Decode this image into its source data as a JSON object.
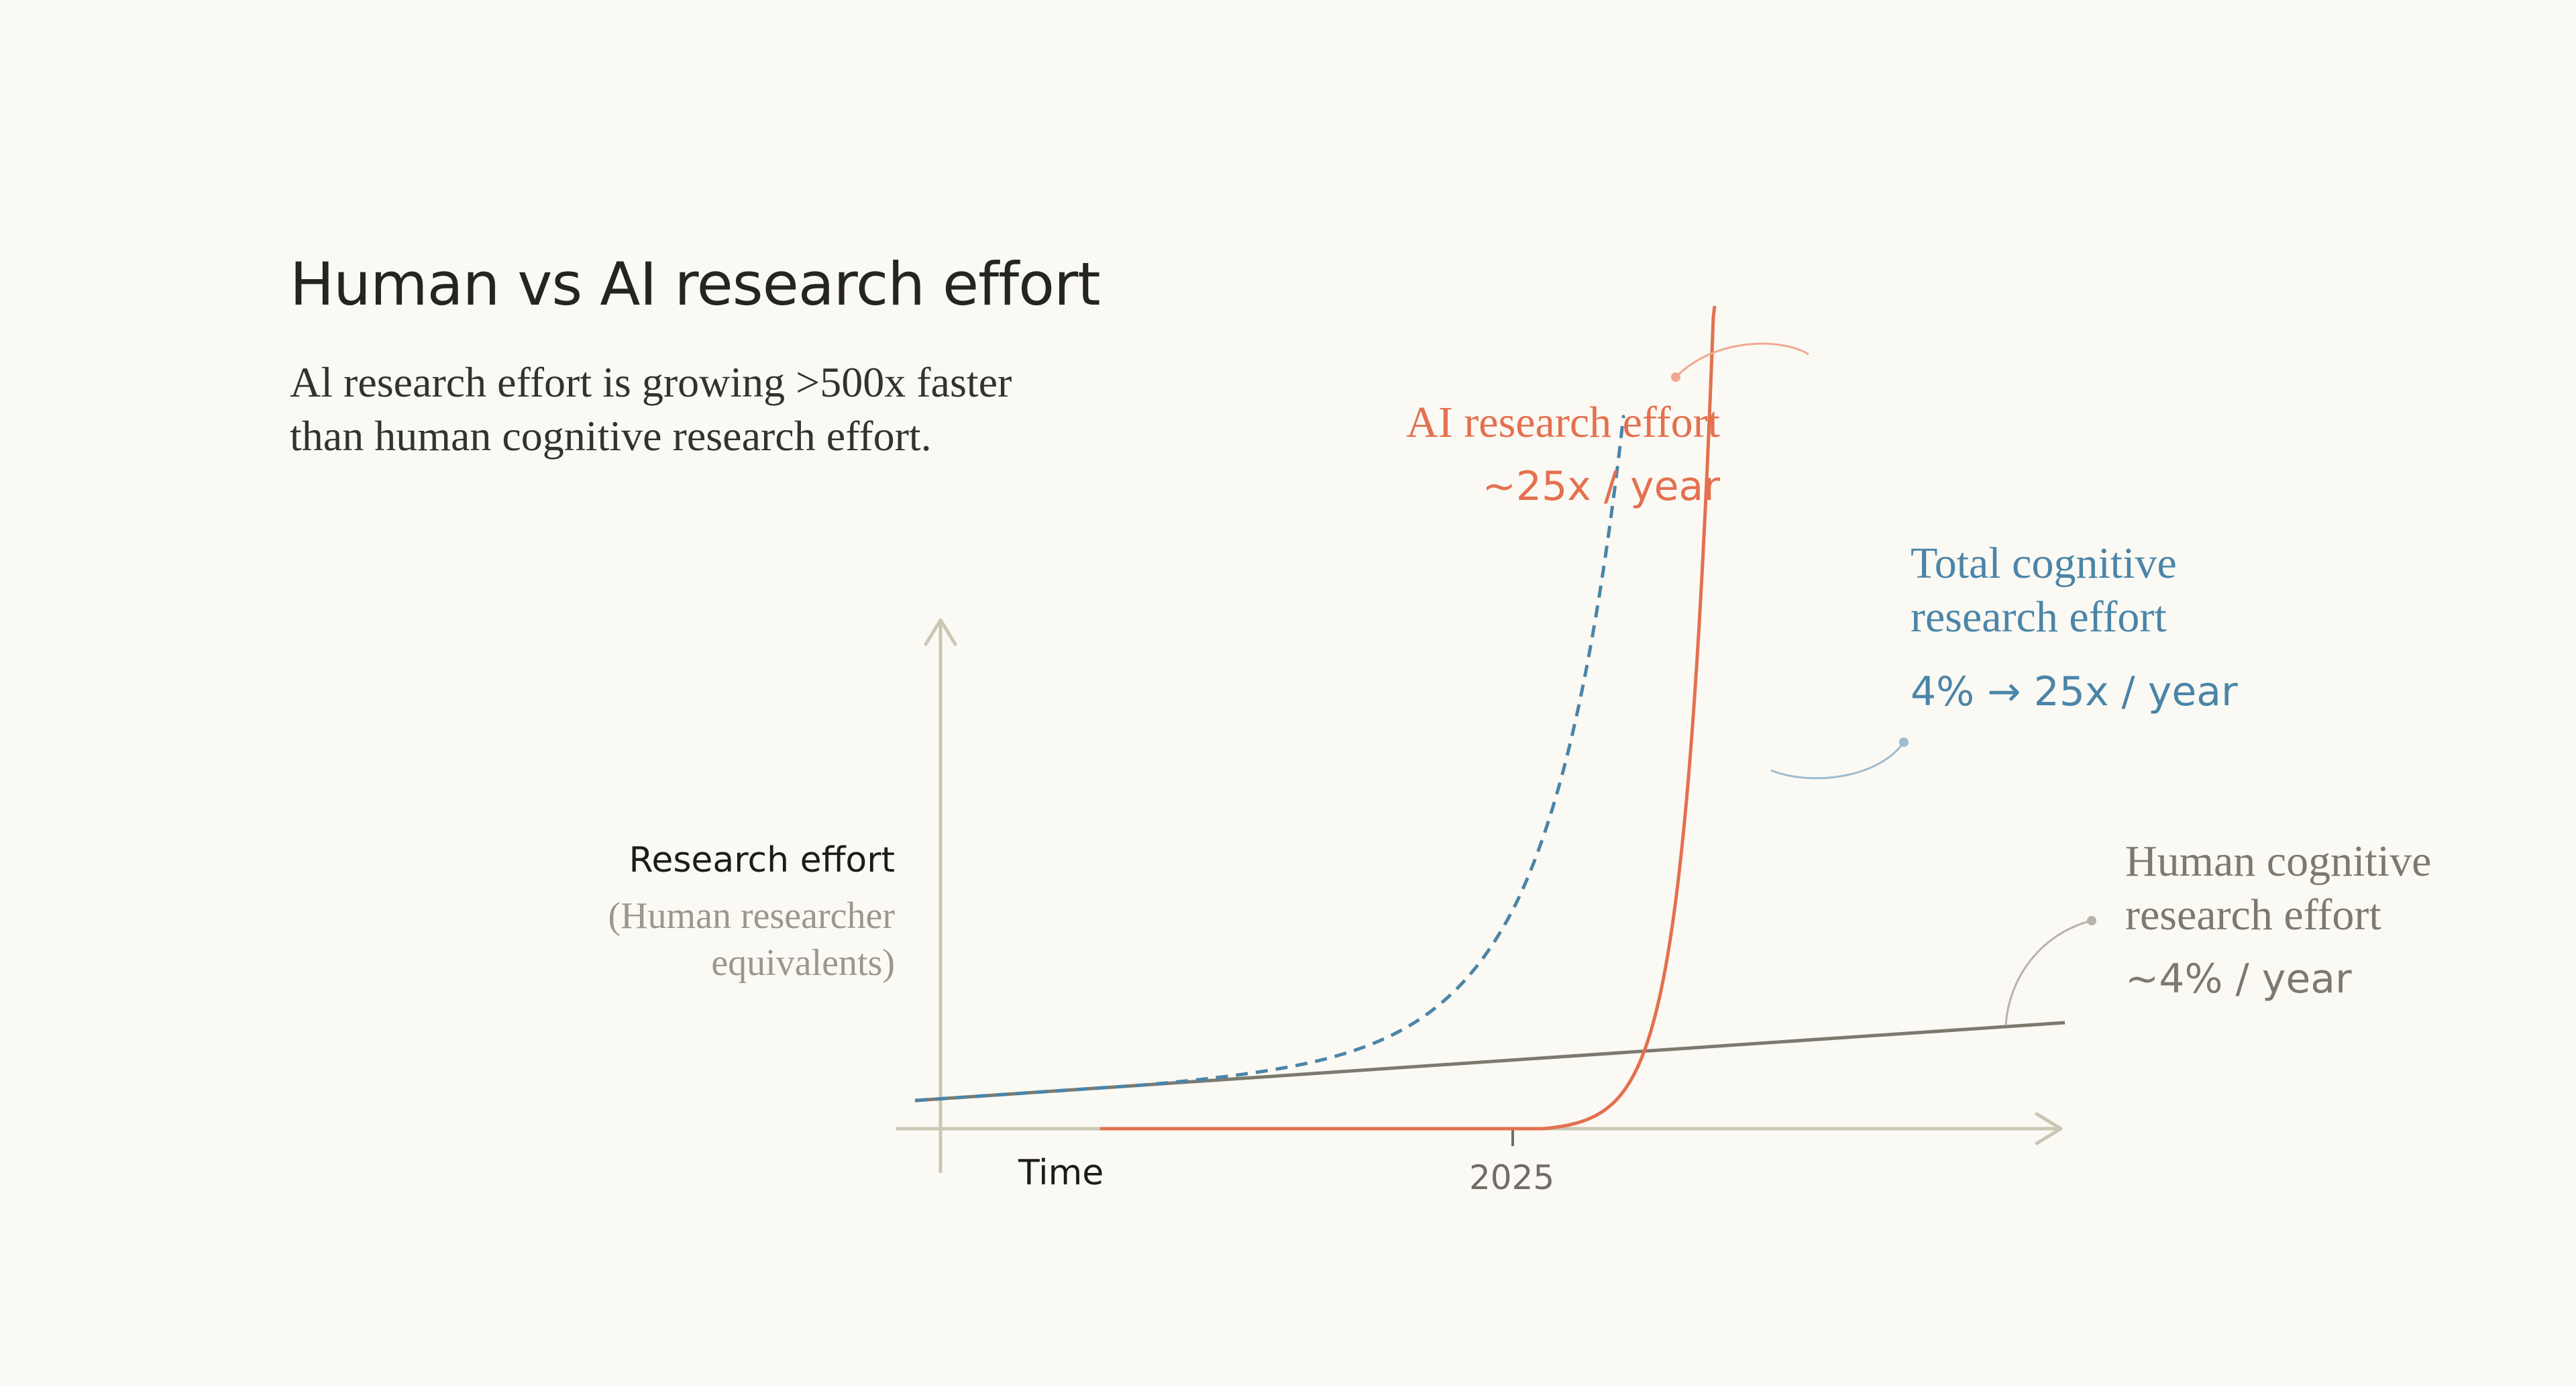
{
  "title": "Human vs AI research effort",
  "subtitle": {
    "line1": "Al research effort is growing >500x faster",
    "line2": "than human cognitive research effort."
  },
  "colors": {
    "ai": "#e4704f",
    "total": "#4a85a9",
    "human": "#7c7a6f",
    "axis": "#c9c6b3",
    "background": "#fbf9f3"
  },
  "chart_data": {
    "type": "line",
    "title": "Human vs AI research effort",
    "xlabel": "Time",
    "ylabel": "Research effort",
    "ylabel_sub": [
      "(Human researcher",
      "equivalents)"
    ],
    "x_ticks": [
      "2025"
    ],
    "grid": false,
    "axes_numeric_values": "none shown",
    "series": [
      {
        "name": "AI research effort",
        "label_lines": [
          "AI research effort"
        ],
        "rate": "~25x / year",
        "style": "solid",
        "color": "#e4704f"
      },
      {
        "name": "Total cognitive research effort",
        "label_lines": [
          "Total cognitive",
          "research effort"
        ],
        "rate": "4% → 25x / year",
        "style": "dashed",
        "color": "#4a85a9"
      },
      {
        "name": "Human cognitive research effort",
        "label_lines": [
          "Human cognitive",
          "research effort"
        ],
        "rate": "~4% / year",
        "style": "solid",
        "color": "#7c7a6f"
      }
    ]
  }
}
